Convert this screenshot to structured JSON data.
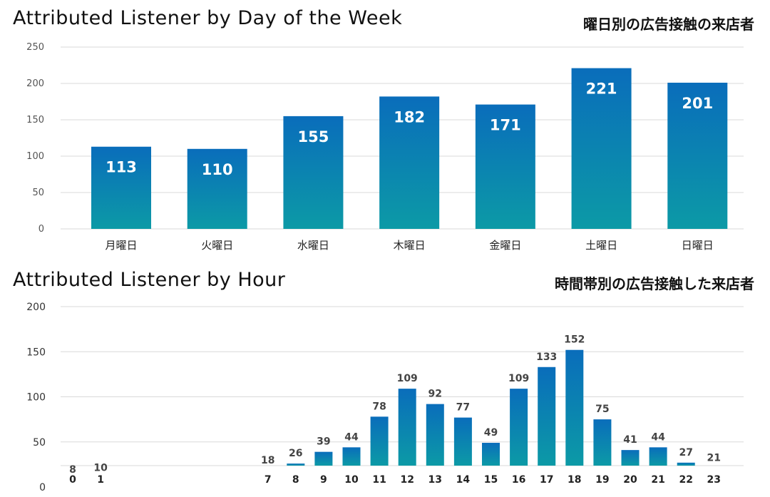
{
  "charts": {
    "day": {
      "title": "Attributed Listener by Day of the Week",
      "subtitle": "曜日別の広告接触の来店者"
    },
    "hour": {
      "title": "Attributed Listener  by Hour",
      "subtitle": "時間帯別の広告接触した来店者"
    }
  },
  "colors": {
    "bar_top": "#0a6dbb",
    "bar_bottom": "#0c9aa6",
    "grid": "#d9d9d9"
  },
  "chart_data": [
    {
      "type": "bar",
      "title": "Attributed Listener by Day of the Week",
      "subtitle": "曜日別の広告接触の来店者",
      "categories": [
        "月曜日",
        "火曜日",
        "水曜日",
        "木曜日",
        "金曜日",
        "土曜日",
        "日曜日"
      ],
      "values": [
        113,
        110,
        155,
        182,
        171,
        221,
        201
      ],
      "ylim": [
        0,
        250
      ],
      "yticks": [
        0,
        50,
        100,
        150,
        200,
        250
      ],
      "xlabel": "",
      "ylabel": "",
      "grid": true,
      "legend": "none"
    },
    {
      "type": "bar",
      "title": "Attributed Listener  by Hour",
      "subtitle": "時間帯別の広告接触した来店者",
      "categories": [
        "0",
        "1",
        "7",
        "8",
        "9",
        "10",
        "11",
        "12",
        "13",
        "14",
        "15",
        "16",
        "17",
        "18",
        "19",
        "20",
        "21",
        "22",
        "23"
      ],
      "x": [
        0,
        1,
        7,
        8,
        9,
        10,
        11,
        12,
        13,
        14,
        15,
        16,
        17,
        18,
        19,
        20,
        21,
        22,
        23
      ],
      "values": [
        8,
        10,
        18,
        26,
        39,
        44,
        78,
        109,
        92,
        77,
        49,
        109,
        133,
        152,
        75,
        41,
        44,
        27,
        21
      ],
      "ylim": [
        0,
        200
      ],
      "yticks": [
        0,
        50,
        100,
        150,
        200
      ],
      "xlabel": "",
      "ylabel": "",
      "grid": true,
      "legend": "none"
    }
  ]
}
